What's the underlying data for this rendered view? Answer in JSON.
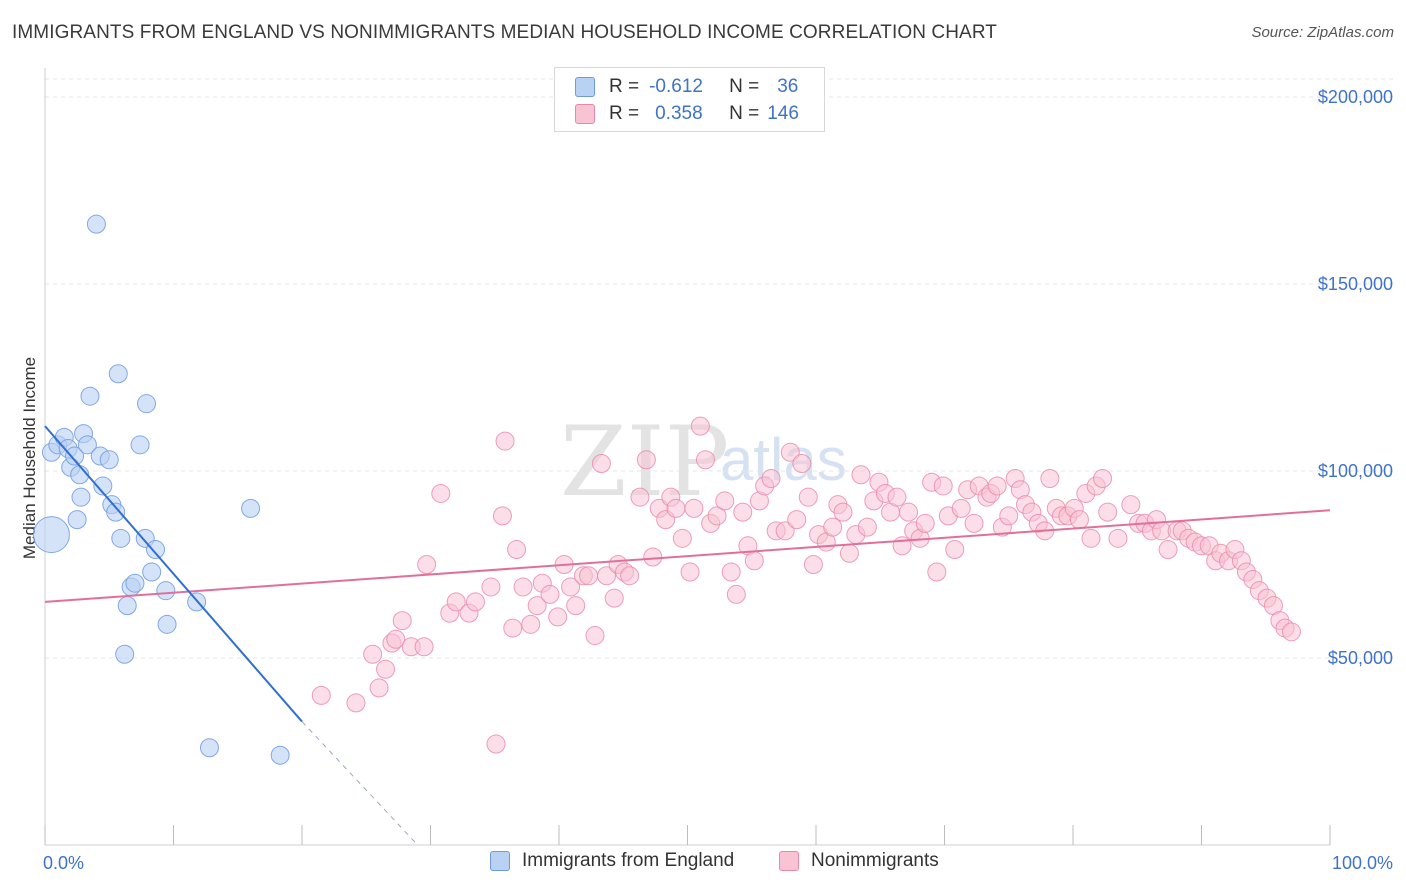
{
  "title": "IMMIGRANTS FROM ENGLAND VS NONIMMIGRANTS MEDIAN HOUSEHOLD INCOME CORRELATION CHART",
  "source": "Source: ZipAtlas.com",
  "watermark": "ZIPatlas",
  "legend": {
    "r_label": "R =",
    "n_label": "N =",
    "rows": [
      {
        "r": "-0.612",
        "n": "36"
      },
      {
        "r": "0.358",
        "n": "146"
      }
    ]
  },
  "colors": {
    "blue_fill": "#b9d1f3",
    "blue_stroke": "#6e9be0",
    "blue_line": "#2f6fd0",
    "pink_fill": "#f8c3d3",
    "pink_stroke": "#e888a8",
    "pink_line": "#e0709a",
    "axis_text": "#3f73c9"
  },
  "chart_data": {
    "type": "scatter",
    "title": "IMMIGRANTS FROM ENGLAND VS NONIMMIGRANTS MEDIAN HOUSEHOLD INCOME CORRELATION CHART",
    "xlabel": "",
    "ylabel": "Median Household Income",
    "xlim": [
      0,
      100
    ],
    "ylim": [
      0,
      200000
    ],
    "x_tick_labels": [
      "0.0%",
      "100.0%"
    ],
    "y_ticks": [
      50000,
      100000,
      150000,
      200000
    ],
    "y_tick_labels": [
      "$50,000",
      "$100,000",
      "$150,000",
      "$200,000"
    ],
    "series": [
      {
        "name": "Immigrants from England",
        "r": -0.612,
        "n": 36,
        "trend": {
          "x": [
            0,
            20
          ],
          "y": [
            112000,
            33000
          ],
          "dashed_to": [
            29,
            0
          ]
        },
        "points": [
          [
            0.5,
            83000,
            3
          ],
          [
            0.5,
            105000,
            1
          ],
          [
            1,
            107000,
            1
          ],
          [
            1.5,
            109000,
            1
          ],
          [
            1.8,
            106000,
            1
          ],
          [
            2,
            101000,
            1
          ],
          [
            2.3,
            104000,
            1
          ],
          [
            2.5,
            87000,
            1
          ],
          [
            2.7,
            99000,
            1
          ],
          [
            2.8,
            93000,
            1
          ],
          [
            3,
            110000,
            1
          ],
          [
            3.3,
            107000,
            1
          ],
          [
            3.5,
            120000,
            1
          ],
          [
            4,
            166000,
            1
          ],
          [
            4.3,
            104000,
            1
          ],
          [
            4.5,
            96000,
            1
          ],
          [
            5,
            103000,
            1
          ],
          [
            5.2,
            91000,
            1
          ],
          [
            5.5,
            89000,
            1
          ],
          [
            5.7,
            126000,
            1
          ],
          [
            5.9,
            82000,
            1
          ],
          [
            6.2,
            51000,
            1
          ],
          [
            6.4,
            64000,
            1
          ],
          [
            6.7,
            69000,
            1
          ],
          [
            7,
            70000,
            1
          ],
          [
            7.4,
            107000,
            1
          ],
          [
            7.8,
            82000,
            1
          ],
          [
            7.9,
            118000,
            1
          ],
          [
            8.3,
            73000,
            1
          ],
          [
            8.6,
            79000,
            1
          ],
          [
            9.4,
            68000,
            1
          ],
          [
            9.5,
            59000,
            1
          ],
          [
            11.8,
            65000,
            1
          ],
          [
            12.8,
            26000,
            1
          ],
          [
            16,
            90000,
            1
          ],
          [
            18.3,
            24000,
            1
          ]
        ]
      },
      {
        "name": "Nonimmigrants",
        "r": 0.358,
        "n": 146,
        "trend": {
          "x": [
            0,
            100
          ],
          "y": [
            65000,
            89500
          ]
        },
        "points": [
          [
            21.5,
            40000
          ],
          [
            24.2,
            38000
          ],
          [
            25.5,
            51000
          ],
          [
            26,
            42000
          ],
          [
            26.5,
            47000
          ],
          [
            27,
            54000
          ],
          [
            27.3,
            55000
          ],
          [
            27.8,
            60000
          ],
          [
            28.5,
            53000
          ],
          [
            29.5,
            53000
          ],
          [
            29.7,
            75000
          ],
          [
            30.8,
            94000
          ],
          [
            31.5,
            62000
          ],
          [
            32,
            65000
          ],
          [
            33,
            62000
          ],
          [
            33.5,
            65000
          ],
          [
            34.7,
            69000
          ],
          [
            35.1,
            27000
          ],
          [
            35.6,
            88000
          ],
          [
            35.8,
            108000
          ],
          [
            36.4,
            58000
          ],
          [
            36.7,
            79000
          ],
          [
            37.2,
            69000
          ],
          [
            37.8,
            59000
          ],
          [
            38.3,
            64000
          ],
          [
            38.7,
            70000
          ],
          [
            39.3,
            67000
          ],
          [
            39.9,
            61000
          ],
          [
            40.4,
            75000
          ],
          [
            40.9,
            69000
          ],
          [
            41.3,
            64000
          ],
          [
            41.9,
            72000
          ],
          [
            42.3,
            72000
          ],
          [
            42.8,
            56000
          ],
          [
            43.3,
            102000
          ],
          [
            43.7,
            72000
          ],
          [
            44.3,
            66000
          ],
          [
            44.6,
            75000
          ],
          [
            45.1,
            73000
          ],
          [
            45.5,
            72000
          ],
          [
            46.3,
            93000
          ],
          [
            46.8,
            103000
          ],
          [
            47.3,
            77000
          ],
          [
            47.8,
            90000
          ],
          [
            48.3,
            87000
          ],
          [
            48.7,
            93000
          ],
          [
            49.1,
            90000
          ],
          [
            49.6,
            82000
          ],
          [
            50.2,
            73000
          ],
          [
            50.5,
            90000
          ],
          [
            51,
            112000
          ],
          [
            51.4,
            103000
          ],
          [
            51.8,
            86000
          ],
          [
            52.3,
            88000
          ],
          [
            52.9,
            92000
          ],
          [
            53.4,
            73000
          ],
          [
            53.8,
            67000
          ],
          [
            54.3,
            89000
          ],
          [
            54.7,
            80000
          ],
          [
            55.2,
            76000
          ],
          [
            55.6,
            92000
          ],
          [
            56,
            96000
          ],
          [
            56.5,
            98000
          ],
          [
            56.9,
            84000
          ],
          [
            57.6,
            84000
          ],
          [
            58,
            105000
          ],
          [
            58.5,
            87000
          ],
          [
            58.9,
            102000
          ],
          [
            59.4,
            93000
          ],
          [
            59.8,
            75000
          ],
          [
            60.2,
            83000
          ],
          [
            60.8,
            81000
          ],
          [
            61.3,
            85000
          ],
          [
            61.7,
            91000
          ],
          [
            62.1,
            89000
          ],
          [
            62.6,
            78000
          ],
          [
            63.1,
            83000
          ],
          [
            63.5,
            99000
          ],
          [
            64,
            85000
          ],
          [
            64.5,
            92000
          ],
          [
            64.9,
            97000
          ],
          [
            65.4,
            94000
          ],
          [
            65.8,
            89000
          ],
          [
            66.3,
            93000
          ],
          [
            66.7,
            80000
          ],
          [
            67.2,
            89000
          ],
          [
            67.6,
            84000
          ],
          [
            68.1,
            82000
          ],
          [
            68.5,
            86000
          ],
          [
            69,
            97000
          ],
          [
            69.4,
            73000
          ],
          [
            69.9,
            96000
          ],
          [
            70.3,
            88000
          ],
          [
            70.8,
            79000
          ],
          [
            71.3,
            90000
          ],
          [
            71.8,
            95000
          ],
          [
            72.3,
            86000
          ],
          [
            72.7,
            96000
          ],
          [
            73.3,
            93000
          ],
          [
            73.6,
            94000
          ],
          [
            74.1,
            96000
          ],
          [
            74.5,
            85000
          ],
          [
            75,
            88000
          ],
          [
            75.5,
            98000
          ],
          [
            75.9,
            95000
          ],
          [
            76.3,
            91000
          ],
          [
            76.8,
            89000
          ],
          [
            77.3,
            86000
          ],
          [
            77.8,
            84000
          ],
          [
            78.2,
            98000
          ],
          [
            78.7,
            90000
          ],
          [
            79.1,
            88000
          ],
          [
            79.6,
            88000
          ],
          [
            80.1,
            90000
          ],
          [
            80.5,
            87000
          ],
          [
            81,
            94000
          ],
          [
            81.4,
            82000
          ],
          [
            81.8,
            96000
          ],
          [
            82.3,
            98000
          ],
          [
            82.7,
            89000
          ],
          [
            83.5,
            82000
          ],
          [
            84.5,
            91000
          ],
          [
            85.1,
            86000
          ],
          [
            85.6,
            86000
          ],
          [
            86.1,
            84000
          ],
          [
            86.5,
            87000
          ],
          [
            86.9,
            84000
          ],
          [
            87.4,
            79000
          ],
          [
            88.1,
            84000
          ],
          [
            88.5,
            84000
          ],
          [
            89,
            82000
          ],
          [
            89.5,
            81000
          ],
          [
            90,
            80000
          ],
          [
            90.6,
            80000
          ],
          [
            91.1,
            76000
          ],
          [
            91.5,
            78000
          ],
          [
            92.1,
            76000
          ],
          [
            92.6,
            79000
          ],
          [
            93.1,
            76000
          ],
          [
            93.5,
            73000
          ],
          [
            94,
            71000
          ],
          [
            94.5,
            68000
          ],
          [
            95.1,
            66000
          ],
          [
            95.6,
            64000
          ],
          [
            96.1,
            60000
          ],
          [
            96.5,
            58000
          ],
          [
            97,
            57000
          ]
        ]
      }
    ]
  },
  "bottom_legend": [
    "Immigrants from England",
    "Nonimmigrants"
  ]
}
